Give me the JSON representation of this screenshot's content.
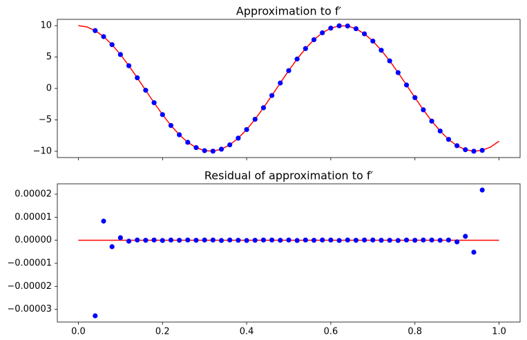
{
  "chart_data": [
    {
      "type": "line",
      "title": "Approximation to f′",
      "xlim": [
        -0.05,
        1.05
      ],
      "ylim": [
        -11,
        11
      ],
      "xticks": [
        0,
        0.2,
        0.4,
        0.6,
        0.8,
        1
      ],
      "show_xtick_labels": false,
      "yticks": [
        {
          "value": -10,
          "label": "−10"
        },
        {
          "value": -5,
          "label": "−5"
        },
        0,
        5,
        10
      ],
      "series": [
        {
          "kind": "line",
          "color": "#ff0000",
          "x": [
            0,
            0.02,
            0.04,
            0.06,
            0.08,
            0.1,
            0.12,
            0.14,
            0.16,
            0.18,
            0.2,
            0.22,
            0.24,
            0.26,
            0.28,
            0.3,
            0.32,
            0.34,
            0.36,
            0.38,
            0.4,
            0.42,
            0.44,
            0.46,
            0.48,
            0.5,
            0.52,
            0.54,
            0.56,
            0.58,
            0.6,
            0.62,
            0.64,
            0.66,
            0.68,
            0.7,
            0.72,
            0.74,
            0.76,
            0.78,
            0.8,
            0.82,
            0.84,
            0.86,
            0.88,
            0.9,
            0.92,
            0.94,
            0.96,
            0.98,
            1
          ],
          "values": [
            10,
            9.8,
            9.21,
            8.25,
            6.97,
            5.4,
            3.62,
            1.7,
            -0.29,
            -2.27,
            -4.16,
            -5.89,
            -7.37,
            -8.57,
            -9.42,
            -9.9,
            -9.98,
            -9.67,
            -8.97,
            -7.91,
            -6.54,
            -4.9,
            -3.07,
            -1.12,
            0.87,
            2.84,
            4.69,
            6.35,
            7.76,
            8.86,
            9.6,
            9.97,
            9.94,
            9.51,
            8.69,
            7.54,
            6.08,
            4.39,
            2.52,
            0.55,
            -1.46,
            -3.4,
            -5.2,
            -6.77,
            -8.11,
            -9.11,
            -9.75,
            -9.99,
            -9.85,
            -9.32,
            -8.39
          ]
        },
        {
          "kind": "scatter",
          "color": "#0000ff",
          "x": [
            0.04,
            0.06,
            0.08,
            0.1,
            0.12,
            0.14,
            0.16,
            0.18,
            0.2,
            0.22,
            0.24,
            0.26,
            0.28,
            0.3,
            0.32,
            0.34,
            0.36,
            0.38,
            0.4,
            0.42,
            0.44,
            0.46,
            0.48,
            0.5,
            0.52,
            0.54,
            0.56,
            0.58,
            0.6,
            0.62,
            0.64,
            0.66,
            0.68,
            0.7,
            0.72,
            0.74,
            0.76,
            0.78,
            0.8,
            0.82,
            0.84,
            0.86,
            0.88,
            0.9,
            0.92,
            0.94,
            0.96
          ],
          "values": [
            9.21,
            8.25,
            6.97,
            5.4,
            3.62,
            1.7,
            -0.29,
            -2.27,
            -4.16,
            -5.89,
            -7.37,
            -8.57,
            -9.42,
            -9.9,
            -9.98,
            -9.67,
            -8.97,
            -7.91,
            -6.54,
            -4.9,
            -3.07,
            -1.12,
            0.87,
            2.84,
            4.69,
            6.35,
            7.76,
            8.86,
            9.6,
            9.97,
            9.94,
            9.51,
            8.69,
            7.54,
            6.08,
            4.39,
            2.52,
            0.55,
            -1.46,
            -3.4,
            -5.2,
            -6.77,
            -8.11,
            -9.11,
            -9.75,
            -9.99,
            -9.85
          ]
        }
      ]
    },
    {
      "type": "line",
      "title": "Residual of approximation to f′",
      "xlim": [
        -0.05,
        1.05
      ],
      "ylim": [
        -3.55e-05,
        2.45e-05
      ],
      "xticks": [
        {
          "value": 0,
          "label": "0.0"
        },
        {
          "value": 0.2,
          "label": "0.2"
        },
        {
          "value": 0.4,
          "label": "0.4"
        },
        {
          "value": 0.6,
          "label": "0.6"
        },
        {
          "value": 0.8,
          "label": "0.8"
        },
        {
          "value": 1,
          "label": "1.0"
        }
      ],
      "show_xtick_labels": true,
      "yticks": [
        {
          "value": -3e-05,
          "label": "−0.00003"
        },
        {
          "value": -2e-05,
          "label": "−0.00002"
        },
        {
          "value": -1e-05,
          "label": "−0.00001"
        },
        {
          "value": 0,
          "label": "0.00000"
        },
        {
          "value": 1e-05,
          "label": "0.00001"
        },
        {
          "value": 2e-05,
          "label": "0.00002"
        }
      ],
      "series": [
        {
          "kind": "line",
          "color": "#ff0000",
          "x": [
            0,
            1
          ],
          "values": [
            0,
            0
          ]
        },
        {
          "kind": "scatter",
          "color": "#0000ff",
          "x": [
            0.04,
            0.06,
            0.08,
            0.1,
            0.12,
            0.14,
            0.16,
            0.18,
            0.2,
            0.22,
            0.24,
            0.26,
            0.28,
            0.3,
            0.32,
            0.34,
            0.36,
            0.38,
            0.4,
            0.42,
            0.44,
            0.46,
            0.48,
            0.5,
            0.52,
            0.54,
            0.56,
            0.58,
            0.6,
            0.62,
            0.64,
            0.66,
            0.68,
            0.7,
            0.72,
            0.74,
            0.76,
            0.78,
            0.8,
            0.82,
            0.84,
            0.86,
            0.88,
            0.9,
            0.92,
            0.94,
            0.96
          ],
          "values": [
            -3.28e-05,
            8.3e-06,
            -2.8e-06,
            1.1e-06,
            -4e-07,
            1e-07,
            0,
            1e-07,
            -1e-07,
            1e-07,
            0,
            1e-07,
            0,
            1e-07,
            1e-07,
            -1e-07,
            1e-07,
            0,
            -1e-07,
            0,
            1e-07,
            1e-07,
            0,
            1e-07,
            -1e-07,
            1e-07,
            0,
            1e-07,
            1e-07,
            -1e-07,
            1e-07,
            0,
            1e-07,
            1e-07,
            0,
            0,
            -1e-07,
            1e-07,
            0,
            1e-07,
            1e-07,
            0,
            1e-07,
            -7e-07,
            1.7e-06,
            -5.2e-06,
            2.18e-05
          ]
        }
      ]
    }
  ]
}
